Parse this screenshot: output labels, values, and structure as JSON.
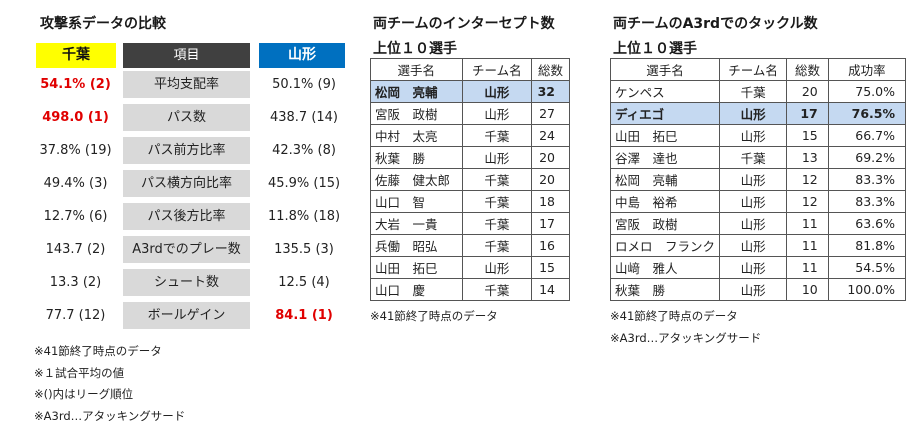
{
  "comparison": {
    "title": "攻撃系データの比較",
    "headers": {
      "team1": "千葉",
      "item": "項目",
      "team2": "山形"
    },
    "rows": [
      {
        "team1": "54.1% (2)",
        "label": "平均支配率",
        "team2": "50.1% (9)",
        "hl": "team1"
      },
      {
        "team1": "498.0 (1)",
        "label": "パス数",
        "team2": "438.7 (14)",
        "hl": "team1"
      },
      {
        "team1": "37.8% (19)",
        "label": "パス前方比率",
        "team2": "42.3% (8)",
        "hl": ""
      },
      {
        "team1": "49.4% (3)",
        "label": "パス横方向比率",
        "team2": "45.9% (15)",
        "hl": ""
      },
      {
        "team1": "12.7% (6)",
        "label": "パス後方比率",
        "team2": "11.8% (18)",
        "hl": ""
      },
      {
        "team1": "143.7 (2)",
        "label": "A3rdでのプレー数",
        "team2": "135.5 (3)",
        "hl": ""
      },
      {
        "team1": "13.3 (2)",
        "label": "シュート数",
        "team2": "12.5 (4)",
        "hl": ""
      },
      {
        "team1": "77.7 (12)",
        "label": "ボールゲイン",
        "team2": "84.1 (1)",
        "hl": "team2"
      }
    ],
    "notes": [
      "※41節終了時点のデータ",
      "※１試合平均の値",
      "※()内はリーグ順位",
      "※A3rd…アタッキングサード"
    ]
  },
  "interceptions": {
    "title_line1": "両チームのインターセプト数",
    "title_line2": "上位１０選手",
    "columns": [
      "選手名",
      "チーム名",
      "総数"
    ],
    "rows": [
      {
        "name": "松岡　亮輔",
        "team": "山形",
        "total": "32",
        "hl": true
      },
      {
        "name": "宮阪　政樹",
        "team": "山形",
        "total": "27",
        "hl": false
      },
      {
        "name": "中村　太亮",
        "team": "千葉",
        "total": "24",
        "hl": false
      },
      {
        "name": "秋葉　勝",
        "team": "山形",
        "total": "20",
        "hl": false
      },
      {
        "name": "佐藤　健太郎",
        "team": "千葉",
        "total": "20",
        "hl": false
      },
      {
        "name": "山口　智",
        "team": "千葉",
        "total": "18",
        "hl": false
      },
      {
        "name": "大岩　一貴",
        "team": "千葉",
        "total": "17",
        "hl": false
      },
      {
        "name": "兵働　昭弘",
        "team": "千葉",
        "total": "16",
        "hl": false
      },
      {
        "name": "山田　拓巳",
        "team": "山形",
        "total": "15",
        "hl": false
      },
      {
        "name": "山口　慶",
        "team": "千葉",
        "total": "14",
        "hl": false
      }
    ],
    "note": "※41節終了時点のデータ"
  },
  "tackles": {
    "title_line1": "両チームのA3rdでのタックル数",
    "title_line2": "上位１０選手",
    "columns": [
      "選手名",
      "チーム名",
      "総数",
      "成功率"
    ],
    "rows": [
      {
        "name": "ケンペス",
        "team": "千葉",
        "total": "20",
        "rate": "75.0%",
        "hl": false
      },
      {
        "name": "ディエゴ",
        "team": "山形",
        "total": "17",
        "rate": "76.5%",
        "hl": true
      },
      {
        "name": "山田　拓巳",
        "team": "山形",
        "total": "15",
        "rate": "66.7%",
        "hl": false
      },
      {
        "name": "谷澤　達也",
        "team": "千葉",
        "total": "13",
        "rate": "69.2%",
        "hl": false
      },
      {
        "name": "松岡　亮輔",
        "team": "山形",
        "total": "12",
        "rate": "83.3%",
        "hl": false
      },
      {
        "name": "中島　裕希",
        "team": "山形",
        "total": "12",
        "rate": "83.3%",
        "hl": false
      },
      {
        "name": "宮阪　政樹",
        "team": "山形",
        "total": "11",
        "rate": "63.6%",
        "hl": false
      },
      {
        "name": "ロメロ　フランク",
        "team": "山形",
        "total": "11",
        "rate": "81.8%",
        "hl": false
      },
      {
        "name": "山﨑　雅人",
        "team": "山形",
        "total": "11",
        "rate": "54.5%",
        "hl": false
      },
      {
        "name": "秋葉　勝",
        "team": "山形",
        "total": "10",
        "rate": "100.0%",
        "hl": false
      }
    ],
    "notes": [
      "※41節終了時点のデータ",
      "※A3rd…アタッキングサード"
    ]
  }
}
